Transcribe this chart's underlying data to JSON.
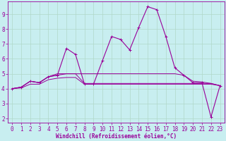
{
  "xlabel": "Windchill (Refroidissement éolien,°C)",
  "x_values": [
    0,
    1,
    2,
    3,
    4,
    5,
    6,
    7,
    8,
    9,
    10,
    11,
    12,
    13,
    14,
    15,
    16,
    17,
    18,
    19,
    20,
    21,
    22,
    23
  ],
  "y_main": [
    4.0,
    4.1,
    4.5,
    4.4,
    4.8,
    4.9,
    6.7,
    6.3,
    4.3,
    4.3,
    5.9,
    7.5,
    7.3,
    6.6,
    8.1,
    9.5,
    9.3,
    7.5,
    5.4,
    4.9,
    4.4,
    4.4,
    2.1,
    4.2
  ],
  "y_line2": [
    4.0,
    4.1,
    4.5,
    4.4,
    4.8,
    4.9,
    5.0,
    5.0,
    4.35,
    4.35,
    4.35,
    4.35,
    4.35,
    4.35,
    4.35,
    4.35,
    4.35,
    4.35,
    4.35,
    4.35,
    4.35,
    4.35,
    4.35,
    4.2
  ],
  "y_line3": [
    4.0,
    4.1,
    4.5,
    4.4,
    4.8,
    5.0,
    5.0,
    5.0,
    5.0,
    5.0,
    5.0,
    5.0,
    5.0,
    5.0,
    5.0,
    5.0,
    5.0,
    5.0,
    5.0,
    4.9,
    4.5,
    4.45,
    4.35,
    4.2
  ],
  "y_line4": [
    4.0,
    4.05,
    4.3,
    4.3,
    4.6,
    4.7,
    4.75,
    4.75,
    4.3,
    4.3,
    4.3,
    4.3,
    4.3,
    4.3,
    4.3,
    4.3,
    4.3,
    4.3,
    4.3,
    4.3,
    4.3,
    4.3,
    4.3,
    4.2
  ],
  "bg_color": "#c8eef0",
  "line_color": "#990099",
  "grid_color": "#b0d8c8",
  "ylim": [
    1.7,
    9.85
  ],
  "xlim": [
    -0.5,
    23.5
  ],
  "yticks": [
    2,
    3,
    4,
    5,
    6,
    7,
    8,
    9
  ],
  "xticks": [
    0,
    1,
    2,
    3,
    4,
    5,
    6,
    7,
    8,
    9,
    10,
    11,
    12,
    13,
    14,
    15,
    16,
    17,
    18,
    19,
    20,
    21,
    22,
    23
  ],
  "xlabel_fontsize": 5.5,
  "tick_fontsize": 5.5
}
